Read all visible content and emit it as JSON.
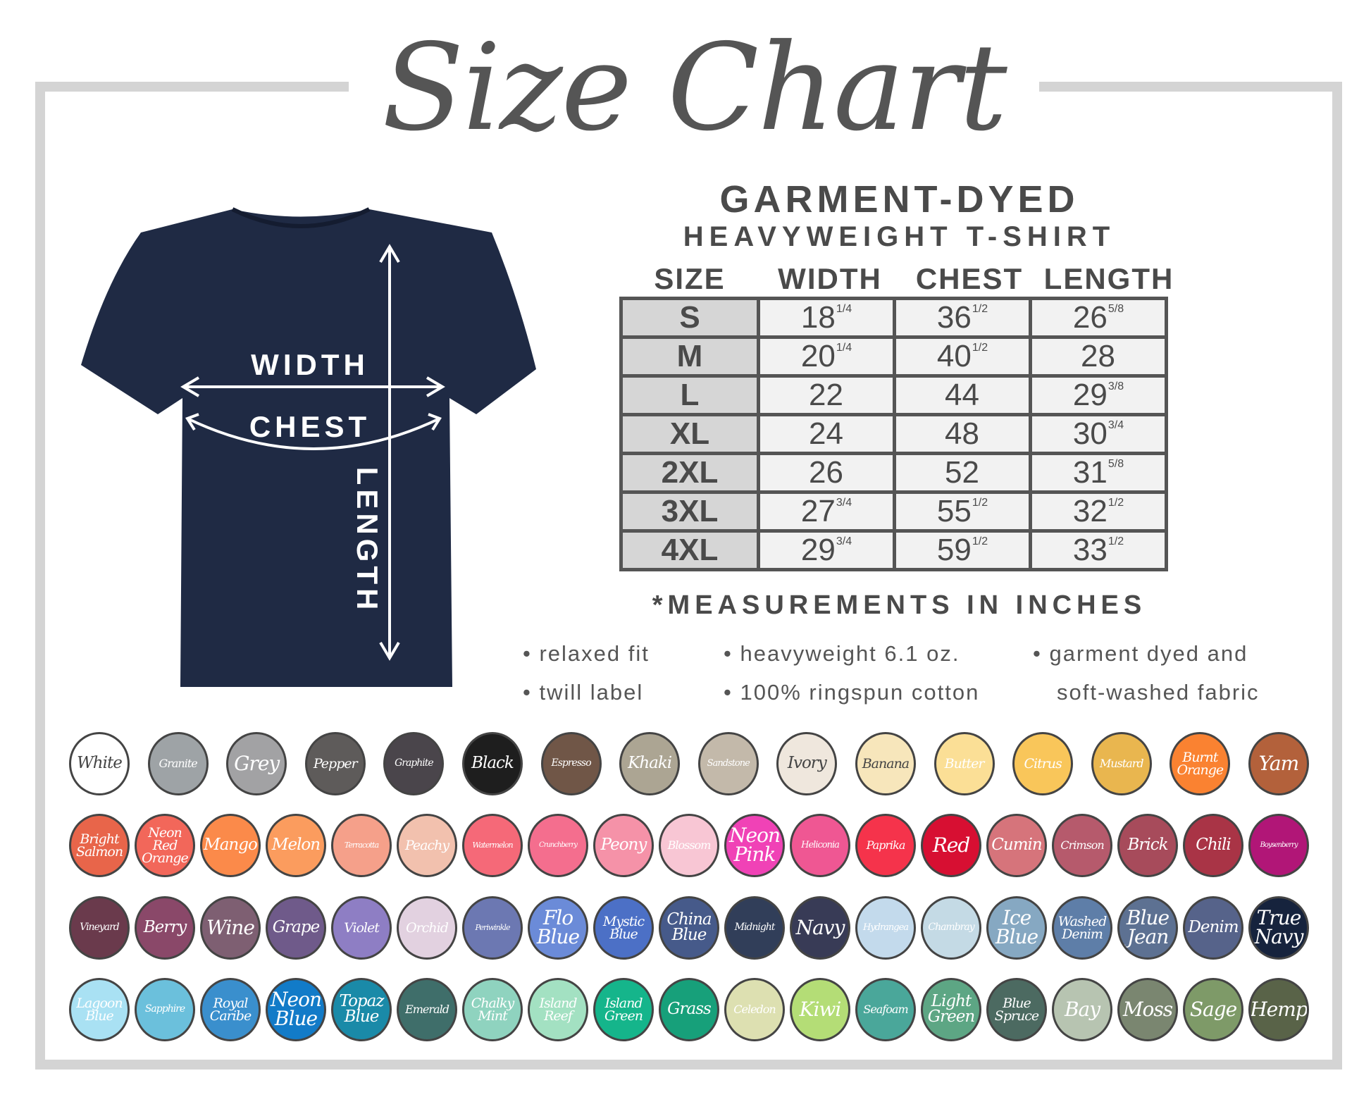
{
  "title": "Size Chart",
  "product": {
    "line1": "GARMENT-DYED",
    "line2": "HEAVYWEIGHT T-SHIRT"
  },
  "shirt": {
    "color": "#1f2a44",
    "labels": {
      "width": "WIDTH",
      "chest": "CHEST",
      "length": "LENGTH"
    }
  },
  "table": {
    "headers": [
      "SIZE",
      "WIDTH",
      "CHEST",
      "LENGTH"
    ],
    "rows": [
      {
        "size": "S",
        "width": [
          "18",
          "1/4"
        ],
        "chest": [
          "36",
          "1/2"
        ],
        "length": [
          "26",
          "5/8"
        ]
      },
      {
        "size": "M",
        "width": [
          "20",
          "1/4"
        ],
        "chest": [
          "40",
          "1/2"
        ],
        "length": [
          "28",
          ""
        ]
      },
      {
        "size": "L",
        "width": [
          "22",
          ""
        ],
        "chest": [
          "44",
          ""
        ],
        "length": [
          "29",
          "3/8"
        ]
      },
      {
        "size": "XL",
        "width": [
          "24",
          ""
        ],
        "chest": [
          "48",
          ""
        ],
        "length": [
          "30",
          "3/4"
        ]
      },
      {
        "size": "2XL",
        "width": [
          "26",
          ""
        ],
        "chest": [
          "52",
          ""
        ],
        "length": [
          "31",
          "5/8"
        ]
      },
      {
        "size": "3XL",
        "width": [
          "27",
          "3/4"
        ],
        "chest": [
          "55",
          "1/2"
        ],
        "length": [
          "32",
          "1/2"
        ]
      },
      {
        "size": "4XL",
        "width": [
          "29",
          "3/4"
        ],
        "chest": [
          "59",
          "1/2"
        ],
        "length": [
          "33",
          "1/2"
        ]
      }
    ],
    "note": "*MEASUREMENTS IN INCHES"
  },
  "features": [
    "• relaxed fit",
    "• twill label",
    "• heavyweight 6.1 oz.",
    "• 100% ringspun cotton",
    "• garment dyed and",
    "soft-washed fabric"
  ],
  "swatches": [
    [
      [
        "White",
        "#ffffff"
      ],
      [
        "Granite",
        "#9ea3a6"
      ],
      [
        "Grey",
        "#a2a2a4"
      ],
      [
        "Pepper",
        "#5e5b5a"
      ],
      [
        "Graphite",
        "#4a454b"
      ],
      [
        "Black",
        "#1e1e1e"
      ],
      [
        "Espresso",
        "#705647"
      ],
      [
        "Khaki",
        "#aca593"
      ],
      [
        "Sandstone",
        "#c3b9aa"
      ],
      [
        "Ivory",
        "#efe7dd"
      ],
      [
        "Banana",
        "#f7e6bb"
      ],
      [
        "Butter",
        "#fbdf96"
      ],
      [
        "Citrus",
        "#f9c65a"
      ],
      [
        "Mustard",
        "#e9b64f"
      ],
      [
        "Burnt Orange",
        "#fa8231"
      ],
      [
        "Yam",
        "#b3613b"
      ]
    ],
    [
      [
        "Bright Salmon",
        "#e8654a"
      ],
      [
        "Neon Red Orange",
        "#f2675a"
      ],
      [
        "Mango",
        "#fb8a4a"
      ],
      [
        "Melon",
        "#fb9c5e"
      ],
      [
        "Terracotta",
        "#f5a08a"
      ],
      [
        "Peachy",
        "#f2c1ae"
      ],
      [
        "Watermelon",
        "#f56978"
      ],
      [
        "Crunchberry",
        "#f46e8e"
      ],
      [
        "Peony",
        "#f592a8"
      ],
      [
        "Blossom",
        "#f8c6d4"
      ],
      [
        "Neon Pink",
        "#f042b6"
      ],
      [
        "Heliconia",
        "#ef5793"
      ],
      [
        "Paprika",
        "#f5334b"
      ],
      [
        "Red",
        "#d70f32"
      ],
      [
        "Cumin",
        "#d6747b"
      ],
      [
        "Crimson",
        "#b65a6c"
      ],
      [
        "Brick",
        "#a74b5b"
      ],
      [
        "Chili",
        "#a93446"
      ],
      [
        "Boysenberry",
        "#b11677"
      ]
    ],
    [
      [
        "Vineyard",
        "#6a3a4c"
      ],
      [
        "Berry",
        "#8a4869"
      ],
      [
        "Wine",
        "#7e5f72"
      ],
      [
        "Grape",
        "#6f5a8a"
      ],
      [
        "Violet",
        "#8e7ec4"
      ],
      [
        "Orchid",
        "#e2d1e0"
      ],
      [
        "Periwinkle",
        "#6c78b2"
      ],
      [
        "Flo Blue",
        "#6b8bd8"
      ],
      [
        "Mystic Blue",
        "#4c70c6"
      ],
      [
        "China Blue",
        "#465a8a"
      ],
      [
        "Midnight",
        "#313e59"
      ],
      [
        "Navy",
        "#383b56"
      ],
      [
        "Hydrangea",
        "#c3daec"
      ],
      [
        "Chambray",
        "#c4dae5"
      ],
      [
        "Ice Blue",
        "#86a8c2"
      ],
      [
        "Washed Denim",
        "#5e7ea8"
      ],
      [
        "Blue Jean",
        "#5d7192"
      ],
      [
        "Denim",
        "#56638a"
      ],
      [
        "True Navy",
        "#16233d"
      ]
    ],
    [
      [
        "Lagoon Blue",
        "#a9e1f3"
      ],
      [
        "Sapphire",
        "#6bc0dc"
      ],
      [
        "Royal Caribe",
        "#3a8fcd"
      ],
      [
        "Neon Blue",
        "#127bc8"
      ],
      [
        "Topaz Blue",
        "#1a8aa8"
      ],
      [
        "Emerald",
        "#3f6e6a"
      ],
      [
        "Chalky Mint",
        "#8fd3bf"
      ],
      [
        "Island Reef",
        "#a3e1c2"
      ],
      [
        "Island Green",
        "#15b58b"
      ],
      [
        "Grass",
        "#17a07a"
      ],
      [
        "Celedon",
        "#dde0b1"
      ],
      [
        "Kiwi",
        "#b4dd76"
      ],
      [
        "Seafoam",
        "#4aa79a"
      ],
      [
        "Light Green",
        "#5da684"
      ],
      [
        "Blue Spruce",
        "#4c6a61"
      ],
      [
        "Bay",
        "#b7c4b1"
      ],
      [
        "Moss",
        "#7a8670"
      ],
      [
        "Sage",
        "#7e9a68"
      ],
      [
        "Hemp",
        "#596348"
      ]
    ]
  ]
}
